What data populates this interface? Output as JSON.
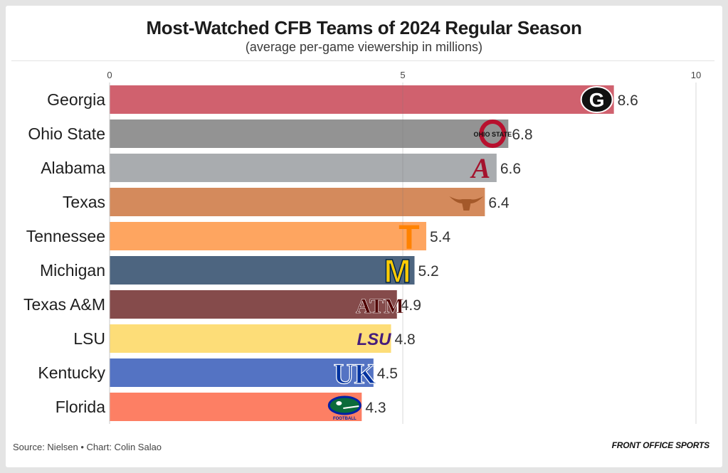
{
  "chart_data": {
    "type": "bar",
    "orientation": "horizontal",
    "title": "Most-Watched CFB Teams of 2024 Regular Season",
    "subtitle": "(average per-game viewership in millions)",
    "xlim": [
      0,
      10
    ],
    "xticks": [
      "0",
      "5",
      "10"
    ],
    "xtick_values": [
      0,
      5,
      10
    ],
    "categories": [
      "Georgia",
      "Ohio State",
      "Alabama",
      "Texas",
      "Tennessee",
      "Michigan",
      "Texas A&M",
      "LSU",
      "Kentucky",
      "Florida"
    ],
    "values": [
      8.6,
      6.8,
      6.6,
      6.4,
      5.4,
      5.2,
      4.9,
      4.8,
      4.5,
      4.3
    ],
    "value_labels": [
      "8.6",
      "6.8",
      "6.6",
      "6.4",
      "5.4",
      "5.2",
      "4.9",
      "4.8",
      "4.5",
      "4.3"
    ],
    "colors": [
      "#d0616e",
      "#939393",
      "#a9acaf",
      "#d48a5c",
      "#fea560",
      "#4d6580",
      "#854b4b",
      "#fddd78",
      "#5473c3",
      "#fd7f64"
    ],
    "logos": [
      "georgia-logo",
      "ohio-state-logo",
      "alabama-logo",
      "texas-logo",
      "tennessee-logo",
      "michigan-logo",
      "texas-am-logo",
      "lsu-logo",
      "kentucky-logo",
      "florida-logo"
    ],
    "logo_text": [
      "G",
      "OHIO STATE",
      "A",
      "",
      "T",
      "M",
      "ATM",
      "LSU",
      "UK",
      "FOOTBALL"
    ],
    "grid": "vertical",
    "legend": "none"
  },
  "footer": {
    "source": "Source: Nielsen • Chart: Colin Salao",
    "brand": "FRONT OFFICE SPORTS"
  }
}
